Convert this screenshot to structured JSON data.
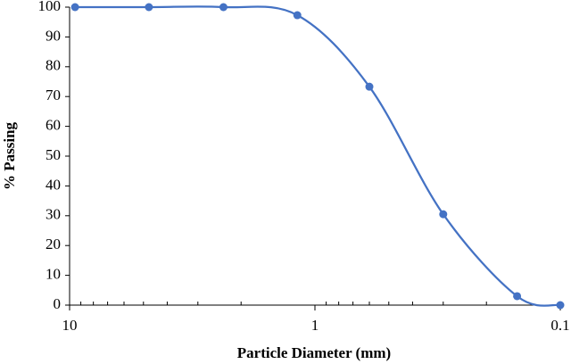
{
  "chart_data": {
    "type": "line",
    "x_axis_label": "Particle Diameter (mm)",
    "y_axis_label": "% Passing",
    "x": [
      9.5,
      4.75,
      2.36,
      1.18,
      0.6,
      0.3,
      0.15,
      0.1
    ],
    "series": [
      {
        "color": "#4472c4",
        "values": [
          100,
          100,
          100,
          97.3,
          73.3,
          30.5,
          3,
          0
        ]
      }
    ],
    "xscale": "log",
    "x_reversed": true,
    "smooth": true,
    "markers": true,
    "xlim": [
      10,
      0.1
    ],
    "xticks": [
      10,
      1,
      0.1
    ],
    "ylim": [
      0,
      100
    ],
    "yticks": [
      0,
      10,
      20,
      30,
      40,
      50,
      60,
      70,
      80,
      90,
      100
    ]
  }
}
